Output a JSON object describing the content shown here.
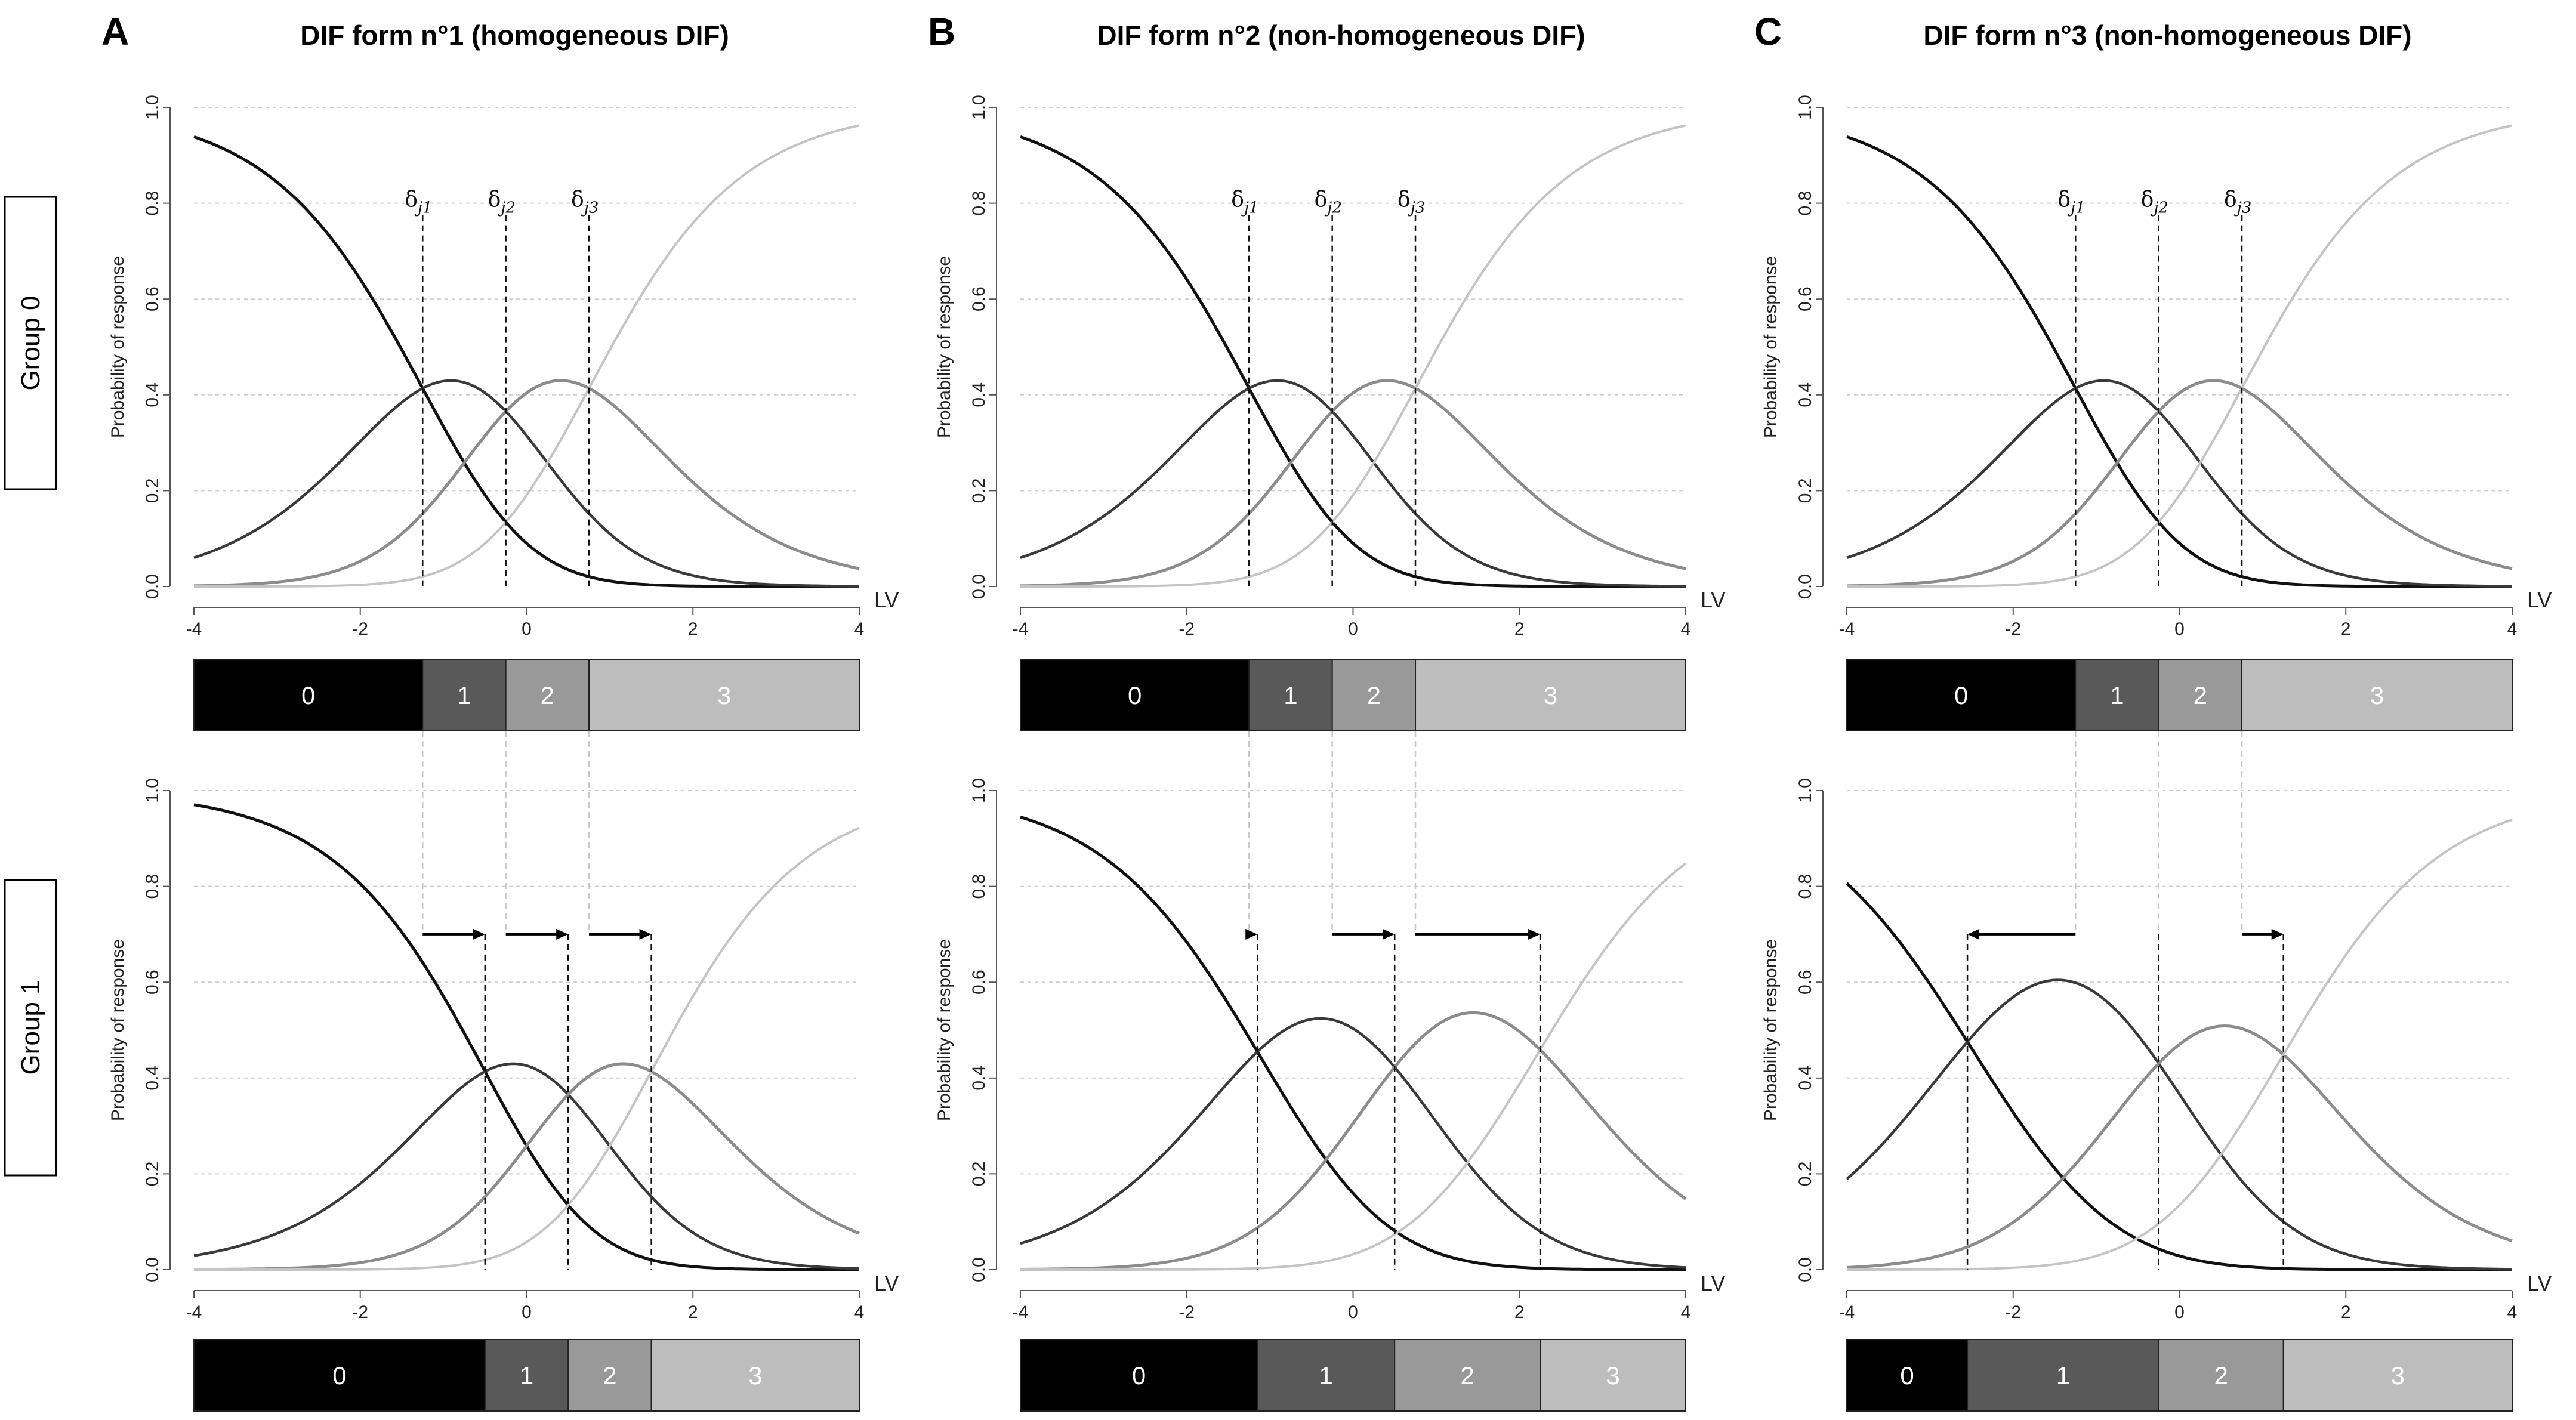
{
  "group_labels": [
    "Group 0",
    "Group 1"
  ],
  "chart_data": [
    {
      "panel": "A",
      "title": "DIF form n°1 (homogeneous DIF)",
      "type": "line",
      "xlabel": "LV",
      "ylabel": "Probability of response",
      "xlim": [
        -4,
        4
      ],
      "ylim": [
        0,
        1
      ],
      "x_ticks": [
        "-4",
        "-2",
        "0",
        "2",
        "4"
      ],
      "y_ticks": [
        "0.0",
        "0.2",
        "0.4",
        "0.6",
        "0.8",
        "1.0"
      ],
      "categories": [
        "0",
        "1",
        "2",
        "3"
      ],
      "group0": {
        "thresholds": [
          -1.25,
          -0.25,
          0.75
        ],
        "delta_labels": [
          "1",
          "2",
          "3"
        ]
      },
      "group1": {
        "thresholds": [
          -0.5,
          0.5,
          1.5
        ]
      }
    },
    {
      "panel": "B",
      "title": "DIF form n°2 (non-homogeneous DIF)",
      "type": "line",
      "xlabel": "LV",
      "ylabel": "Probability of response",
      "xlim": [
        -4,
        4
      ],
      "ylim": [
        0,
        1
      ],
      "x_ticks": [
        "-4",
        "-2",
        "0",
        "2",
        "4"
      ],
      "y_ticks": [
        "0.0",
        "0.2",
        "0.4",
        "0.6",
        "0.8",
        "1.0"
      ],
      "categories": [
        "0",
        "1",
        "2",
        "3"
      ],
      "group0": {
        "thresholds": [
          -1.25,
          -0.25,
          0.75
        ],
        "delta_labels": [
          "1",
          "2",
          "3"
        ]
      },
      "group1": {
        "thresholds": [
          -1.15,
          0.5,
          2.25
        ]
      }
    },
    {
      "panel": "C",
      "title": "DIF form n°3 (non-homogeneous DIF)",
      "type": "line",
      "xlabel": "LV",
      "ylabel": "Probability of response",
      "xlim": [
        -4,
        4
      ],
      "ylim": [
        0,
        1
      ],
      "x_ticks": [
        "-4",
        "-2",
        "0",
        "2",
        "4"
      ],
      "y_ticks": [
        "0.0",
        "0.2",
        "0.4",
        "0.6",
        "0.8",
        "1.0"
      ],
      "categories": [
        "0",
        "1",
        "2",
        "3"
      ],
      "group0": {
        "thresholds": [
          -1.25,
          -0.25,
          0.75
        ],
        "delta_labels": [
          "1",
          "2",
          "3"
        ]
      },
      "group1": {
        "thresholds": [
          -2.55,
          -0.25,
          1.25
        ]
      }
    }
  ],
  "colors": {
    "cat0": "#000000",
    "cat1": "#595959",
    "cat2": "#999999",
    "cat3": "#bdbdbd",
    "curve0": "#111111",
    "curve1": "#3a3a3a",
    "curve2": "#8c8c8c",
    "curve3": "#c4c4c4",
    "grid": "#cfcfcf"
  }
}
